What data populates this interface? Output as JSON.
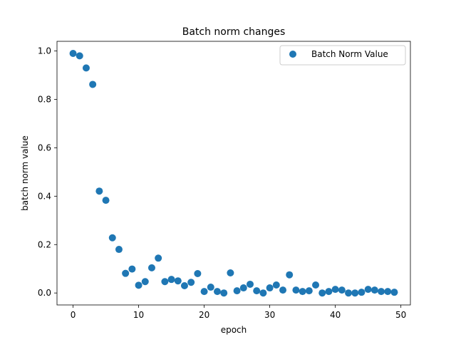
{
  "chart_data": {
    "type": "scatter",
    "title": "Batch norm changes",
    "xlabel": "epoch",
    "ylabel": "batch norm value",
    "xlim": [
      -2.45,
      51.45
    ],
    "ylim": [
      -0.0495,
      1.04
    ],
    "xticks": [
      0,
      10,
      20,
      30,
      40,
      50
    ],
    "xtick_labels": [
      "0",
      "10",
      "20",
      "30",
      "40",
      "50"
    ],
    "yticks": [
      0.0,
      0.2,
      0.4,
      0.6,
      0.8,
      1.0
    ],
    "ytick_labels": [
      "0.0",
      "0.2",
      "0.4",
      "0.6",
      "0.8",
      "1.0"
    ],
    "grid": false,
    "legend_position": "top-right",
    "series": [
      {
        "name": "Batch Norm Value",
        "color": "#1f77b4",
        "x": [
          0,
          1,
          2,
          3,
          4,
          5,
          6,
          7,
          8,
          9,
          10,
          11,
          12,
          13,
          14,
          15,
          16,
          17,
          18,
          19,
          20,
          21,
          22,
          23,
          24,
          25,
          26,
          27,
          28,
          29,
          30,
          31,
          32,
          33,
          34,
          35,
          36,
          37,
          38,
          39,
          40,
          41,
          42,
          43,
          44,
          45,
          46,
          47,
          48,
          49
        ],
        "y": [
          0.99,
          0.98,
          0.93,
          0.862,
          0.421,
          0.383,
          0.228,
          0.18,
          0.081,
          0.099,
          0.032,
          0.047,
          0.104,
          0.144,
          0.047,
          0.056,
          0.05,
          0.03,
          0.044,
          0.08,
          0.006,
          0.024,
          0.006,
          0.0,
          0.083,
          0.009,
          0.021,
          0.036,
          0.009,
          0.0,
          0.021,
          0.033,
          0.012,
          0.075,
          0.012,
          0.006,
          0.009,
          0.033,
          0.0,
          0.006,
          0.015,
          0.012,
          0.0,
          0.0,
          0.003,
          0.015,
          0.012,
          0.006,
          0.006,
          0.003
        ]
      }
    ]
  }
}
